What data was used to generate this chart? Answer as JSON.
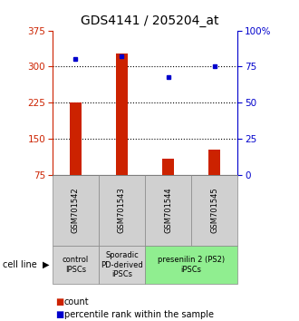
{
  "title": "GDS4141 / 205204_at",
  "samples": [
    "GSM701542",
    "GSM701543",
    "GSM701544",
    "GSM701545"
  ],
  "counts": [
    225,
    328,
    108,
    128
  ],
  "percentiles": [
    80,
    82,
    68,
    75
  ],
  "left_ylim": [
    75,
    375
  ],
  "right_ylim": [
    0,
    100
  ],
  "left_yticks": [
    75,
    150,
    225,
    300,
    375
  ],
  "right_yticks": [
    0,
    25,
    50,
    75,
    100
  ],
  "right_yticklabels": [
    "0",
    "25",
    "50",
    "75",
    "100%"
  ],
  "hgrid_lines": [
    150,
    225,
    300
  ],
  "bar_color": "#cc2200",
  "dot_color": "#0000cc",
  "cell_line_labels": [
    "control\nIPSCs",
    "Sporadic\nPD-derived\niPSCs",
    "presenilin 2 (PS2)\niPSCs"
  ],
  "cell_line_spans": [
    [
      0,
      1
    ],
    [
      1,
      2
    ],
    [
      2,
      4
    ]
  ],
  "cell_line_colors": [
    "#d3d3d3",
    "#d3d3d3",
    "#90ee90"
  ],
  "bar_width": 0.25,
  "title_fontsize": 10,
  "tick_fontsize": 7.5,
  "sample_fontsize": 6,
  "cl_fontsize": 6,
  "legend_fontsize": 7
}
